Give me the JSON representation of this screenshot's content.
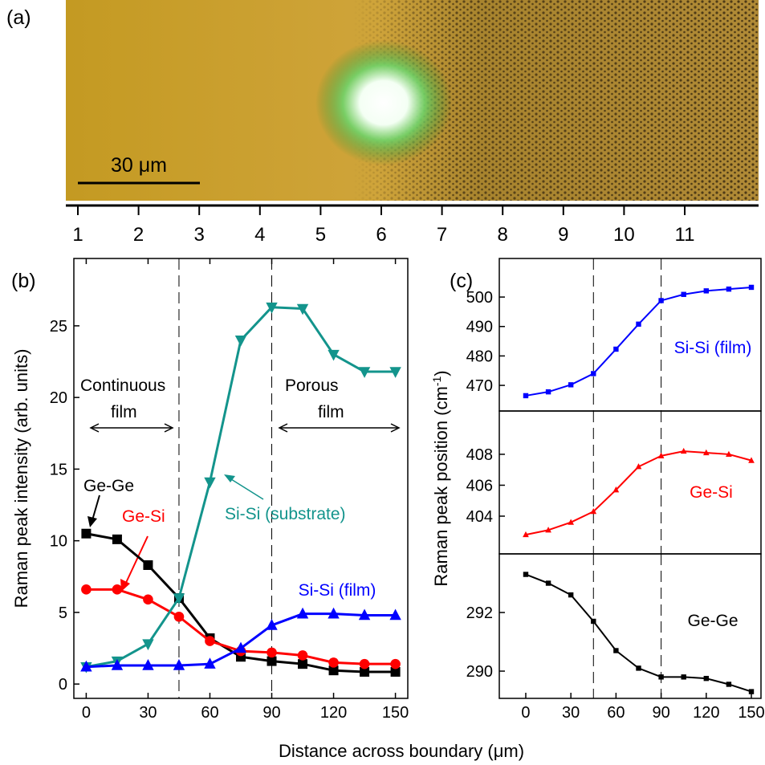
{
  "panel_a": {
    "label": "(a)",
    "scale_bar": "30 μm",
    "ruler": [
      1,
      2,
      3,
      4,
      5,
      6,
      7,
      8,
      9,
      10,
      11
    ]
  },
  "chart_data": [
    {
      "type": "line",
      "panel_label": "(b)",
      "ylabel": "Raman peak intensity (arb. units)",
      "xlabel": "Distance across boundary (μm)",
      "x": [
        0,
        15,
        30,
        45,
        60,
        75,
        90,
        105,
        120,
        135,
        150
      ],
      "xlim": [
        -6,
        156
      ],
      "xticks": [
        0,
        30,
        60,
        90,
        120,
        150
      ],
      "ylim": [
        -1,
        29.7
      ],
      "yticks": [
        0,
        5,
        10,
        15,
        20,
        25
      ],
      "boundaries": [
        45,
        90
      ],
      "annotations": [
        "Continuous",
        "film",
        "Porous",
        "film"
      ],
      "series": [
        {
          "name": "Ge-Ge",
          "color": "#000000",
          "marker": "square",
          "values": [
            10.5,
            10.1,
            8.3,
            6.0,
            3.2,
            1.9,
            1.6,
            1.4,
            0.95,
            0.85,
            0.85
          ]
        },
        {
          "name": "Ge-Si",
          "color": "#ff0000",
          "marker": "circle",
          "values": [
            6.6,
            6.6,
            5.9,
            4.7,
            3.0,
            2.3,
            2.2,
            2.0,
            1.5,
            1.4,
            1.4
          ]
        },
        {
          "name": "Si-Si (substrate)",
          "color": "#13948c",
          "marker": "triangle-down",
          "values": [
            1.2,
            1.6,
            2.8,
            6.0,
            14.1,
            24.0,
            26.3,
            26.2,
            23.0,
            21.8,
            21.8
          ]
        },
        {
          "name": "Si-Si (film)",
          "color": "#0000ff",
          "marker": "triangle-up",
          "values": [
            1.2,
            1.3,
            1.3,
            1.3,
            1.4,
            2.5,
            4.1,
            4.9,
            4.9,
            4.8,
            4.8
          ]
        }
      ]
    },
    {
      "type": "line",
      "panel_label": "(c)",
      "ylabel": [
        "Raman peak position (cm",
        "-1",
        ")"
      ],
      "x": [
        0,
        15,
        30,
        45,
        60,
        75,
        90,
        105,
        120,
        135,
        150
      ],
      "xlim": [
        -17.6,
        156.4
      ],
      "ylim": [
        461.3,
        513.1
      ],
      "yticks": [
        470,
        480,
        490,
        500
      ],
      "boundaries": [
        45,
        90
      ],
      "series": [
        {
          "name": "Si-Si (film)",
          "color": "#0000ff",
          "marker": "square",
          "values": [
            466.5,
            467.8,
            470.2,
            474.0,
            482.3,
            490.8,
            498.8,
            500.9,
            502.1,
            502.7,
            503.3
          ]
        }
      ]
    },
    {
      "type": "line",
      "x": [
        0,
        15,
        30,
        45,
        60,
        75,
        90,
        105,
        120,
        135,
        150
      ],
      "xlim": [
        -17.6,
        156.4
      ],
      "ylim": [
        401.56,
        410.8
      ],
      "yticks": [
        404,
        406,
        408
      ],
      "boundaries": [
        45,
        90
      ],
      "series": [
        {
          "name": "Ge-Si",
          "color": "#ff0000",
          "marker": "triangle-up",
          "values": [
            402.8,
            403.1,
            403.6,
            404.3,
            405.7,
            407.2,
            407.9,
            408.2,
            408.1,
            408.0,
            407.6
          ]
        }
      ]
    },
    {
      "type": "line",
      "x": [
        0,
        15,
        30,
        45,
        60,
        75,
        90,
        105,
        120,
        135,
        150
      ],
      "xlim": [
        -17.6,
        156.4
      ],
      "xticks": [
        0,
        30,
        60,
        90,
        120,
        150
      ],
      "ylim": [
        289.07,
        294.0
      ],
      "yticks": [
        290,
        292
      ],
      "boundaries": [
        45,
        90
      ],
      "series": [
        {
          "name": "Ge-Ge",
          "color": "#000000",
          "marker": "square",
          "values": [
            293.3,
            293.0,
            292.6,
            291.7,
            290.7,
            290.1,
            289.8,
            289.8,
            289.75,
            289.55,
            289.3
          ]
        }
      ]
    }
  ]
}
